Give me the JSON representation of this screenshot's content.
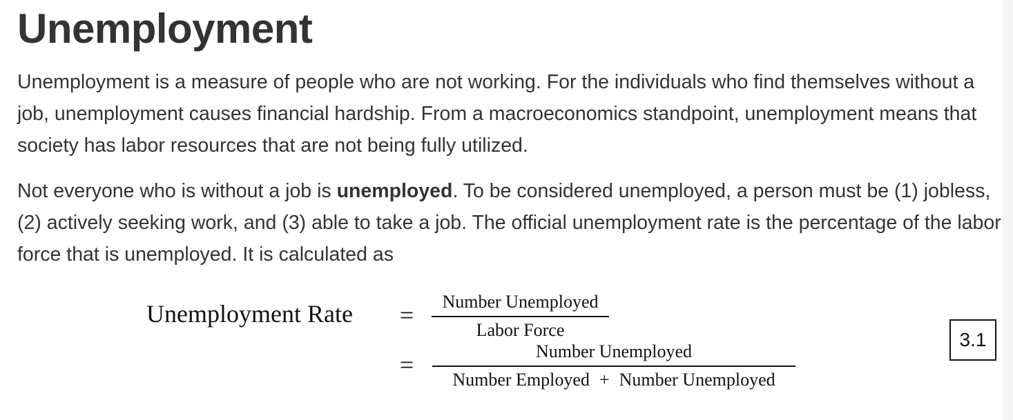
{
  "heading": "Unemployment",
  "paragraph1": "Unemployment is a measure of people who are not working. For the individuals who find themselves without a job, unemployment causes financial hardship. From a macroeconomics standpoint, unemployment means that society has labor resources that are not being fully utilized.",
  "paragraph2": {
    "before_bold": "Not everyone who is without a job is ",
    "bold": "unemployed",
    "after_bold": ". To be considered unemployed, a person must be (1) jobless, (2) actively seeking work, and (3) able to take a job. The official unemployment rate is the percentage of the labor force that is unemployed. It is calculated as"
  },
  "equation": {
    "lhs": "Unemployment Rate",
    "equals": "=",
    "line1": {
      "numerator": "Number Unemployed",
      "denominator": "Labor Force"
    },
    "line2": {
      "numerator": "Number Unemployed",
      "denominator_left": "Number Employed",
      "plus": "+",
      "denominator_right": "Number Unemployed"
    },
    "number": "3.1"
  }
}
